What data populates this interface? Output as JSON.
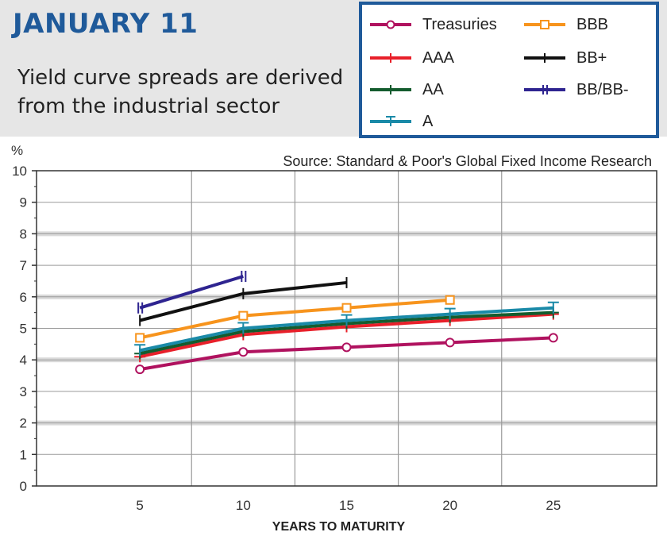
{
  "header": {
    "title": "JANUARY 11",
    "subtitle": "Yield curve spreads are derived from the industrial sector"
  },
  "chart_data": {
    "type": "line",
    "source": "Source: Standard & Poor's Global Fixed Income Research",
    "ylabel": "%",
    "xlabel": "YEARS TO MATURITY",
    "xlim": [
      0,
      30
    ],
    "ylim": [
      0,
      10
    ],
    "x_ticks": [
      5,
      10,
      15,
      20,
      25
    ],
    "y_ticks": [
      0,
      1,
      2,
      3,
      4,
      5,
      6,
      7,
      8,
      9,
      10
    ],
    "grid": true,
    "legend_position": "top-right",
    "series": [
      {
        "name": "Treasuries",
        "color": "#b0125f",
        "marker": "circle",
        "x": [
          5,
          10,
          15,
          20,
          25
        ],
        "values": [
          3.7,
          4.25,
          4.4,
          4.55,
          4.7
        ]
      },
      {
        "name": "AAA",
        "color": "#e8202a",
        "marker": "plus",
        "x": [
          5,
          10,
          15,
          20,
          25
        ],
        "values": [
          4.1,
          4.8,
          5.05,
          5.25,
          5.45
        ]
      },
      {
        "name": "AA",
        "color": "#145c2e",
        "marker": "plus",
        "x": [
          5,
          10,
          15,
          20,
          25
        ],
        "values": [
          4.2,
          4.9,
          5.15,
          5.35,
          5.5
        ]
      },
      {
        "name": "A",
        "color": "#1a8aa8",
        "marker": "tee",
        "x": [
          5,
          10,
          15,
          20,
          25
        ],
        "values": [
          4.3,
          5.0,
          5.25,
          5.45,
          5.65
        ]
      },
      {
        "name": "BBB",
        "color": "#f7941d",
        "marker": "square",
        "x": [
          5,
          10,
          15,
          20
        ],
        "values": [
          4.7,
          5.4,
          5.65,
          5.9
        ]
      },
      {
        "name": "BB+",
        "color": "#111111",
        "marker": "bar",
        "x": [
          5,
          10,
          15
        ],
        "values": [
          5.25,
          6.1,
          6.45
        ]
      },
      {
        "name": "BB/BB-",
        "color": "#2e2490",
        "marker": "hbar",
        "x": [
          5,
          10
        ],
        "values": [
          5.65,
          6.65
        ]
      }
    ]
  }
}
